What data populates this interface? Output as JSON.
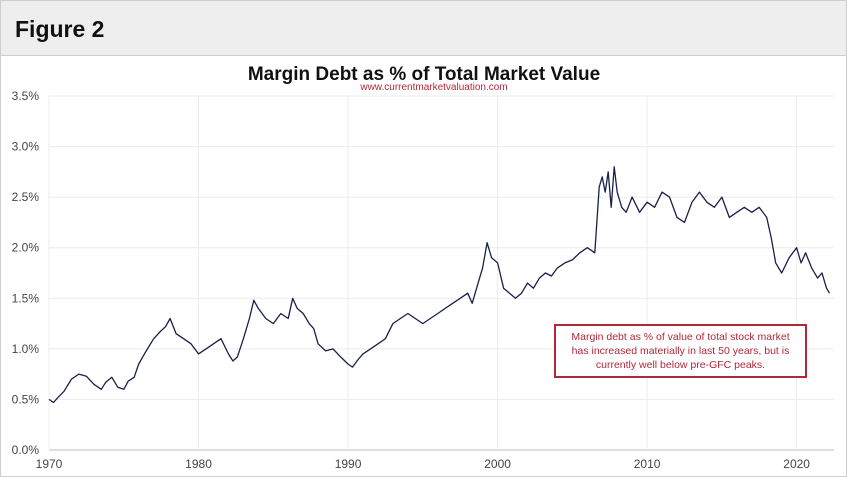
{
  "figure_label": "Figure 2",
  "chart_data": {
    "type": "line",
    "title": "Margin Debt as % of Total Market Value",
    "subtitle": "www.currentmarketvaluation.com",
    "xlabel": "",
    "ylabel": "",
    "xlim": [
      1970,
      2022.5
    ],
    "ylim": [
      0,
      3.5
    ],
    "x_ticks": [
      1970,
      1980,
      1990,
      2000,
      2010,
      2020
    ],
    "x_tick_labels": [
      "1970",
      "1980",
      "1990",
      "2000",
      "2010",
      "2020"
    ],
    "y_ticks": [
      0,
      0.5,
      1.0,
      1.5,
      2.0,
      2.5,
      3.0,
      3.5
    ],
    "y_tick_labels": [
      "0.0%",
      "0.5%",
      "1.0%",
      "1.5%",
      "2.0%",
      "2.5%",
      "3.0%",
      "3.5%"
    ],
    "grid": true,
    "line_color": "#1b1f4a",
    "annotation_color": "#b0283a",
    "annotation": "Margin debt as % of value of total stock market has increased materially in last 50 years, but is currently well below pre-GFC peaks.",
    "series": [
      {
        "x": [
          1970.0,
          1970.3,
          1970.6,
          1971.0,
          1971.5,
          1972.0,
          1972.5,
          1973.0,
          1973.5,
          1973.8,
          1974.2,
          1974.6,
          1975.0,
          1975.3,
          1975.7,
          1976.0,
          1976.5,
          1977.0,
          1977.5,
          1977.8,
          1978.1,
          1978.5,
          1979.0,
          1979.5,
          1980.0,
          1980.5,
          1981.0,
          1981.5,
          1982.0,
          1982.3,
          1982.6,
          1983.0,
          1983.4,
          1983.7,
          1984.0,
          1984.5,
          1985.0,
          1985.5,
          1986.0,
          1986.3,
          1986.6,
          1987.0,
          1987.4,
          1987.7,
          1988.0,
          1988.5,
          1989.0,
          1989.5,
          1990.0,
          1990.3,
          1990.7,
          1991.0,
          1991.5,
          1992.0,
          1992.5,
          1993.0,
          1993.5,
          1994.0,
          1994.5,
          1995.0,
          1995.5,
          1996.0,
          1996.5,
          1997.0,
          1997.5,
          1998.0,
          1998.3,
          1998.6,
          1999.0,
          1999.3,
          1999.6,
          2000.0,
          2000.4,
          2000.8,
          2001.2,
          2001.6,
          2002.0,
          2002.4,
          2002.8,
          2003.2,
          2003.6,
          2004.0,
          2004.5,
          2005.0,
          2005.5,
          2006.0,
          2006.5,
          2006.8,
          2007.0,
          2007.2,
          2007.4,
          2007.6,
          2007.8,
          2008.0,
          2008.3,
          2008.6,
          2009.0,
          2009.5,
          2010.0,
          2010.5,
          2011.0,
          2011.5,
          2012.0,
          2012.5,
          2013.0,
          2013.5,
          2014.0,
          2014.5,
          2015.0,
          2015.5,
          2016.0,
          2016.5,
          2017.0,
          2017.5,
          2018.0,
          2018.3,
          2018.6,
          2019.0,
          2019.5,
          2020.0,
          2020.3,
          2020.6,
          2021.0,
          2021.4,
          2021.7,
          2022.0,
          2022.2
        ],
        "values": [
          0.5,
          0.47,
          0.52,
          0.58,
          0.7,
          0.75,
          0.73,
          0.65,
          0.6,
          0.67,
          0.72,
          0.62,
          0.6,
          0.68,
          0.72,
          0.85,
          0.98,
          1.1,
          1.18,
          1.22,
          1.3,
          1.15,
          1.1,
          1.05,
          0.95,
          1.0,
          1.05,
          1.1,
          0.95,
          0.88,
          0.92,
          1.1,
          1.3,
          1.48,
          1.4,
          1.3,
          1.25,
          1.35,
          1.3,
          1.5,
          1.4,
          1.35,
          1.25,
          1.2,
          1.05,
          0.98,
          1.0,
          0.92,
          0.85,
          0.82,
          0.9,
          0.95,
          1.0,
          1.05,
          1.1,
          1.25,
          1.3,
          1.35,
          1.3,
          1.25,
          1.3,
          1.35,
          1.4,
          1.45,
          1.5,
          1.55,
          1.45,
          1.6,
          1.8,
          2.05,
          1.9,
          1.85,
          1.6,
          1.55,
          1.5,
          1.55,
          1.65,
          1.6,
          1.7,
          1.75,
          1.72,
          1.8,
          1.85,
          1.88,
          1.95,
          2.0,
          1.95,
          2.6,
          2.7,
          2.55,
          2.75,
          2.4,
          2.8,
          2.55,
          2.4,
          2.35,
          2.5,
          2.35,
          2.45,
          2.4,
          2.55,
          2.5,
          2.3,
          2.25,
          2.45,
          2.55,
          2.45,
          2.4,
          2.5,
          2.3,
          2.35,
          2.4,
          2.35,
          2.4,
          2.3,
          2.1,
          1.85,
          1.75,
          1.9,
          2.0,
          1.85,
          1.95,
          1.8,
          1.7,
          1.75,
          1.6,
          1.55
        ]
      }
    ]
  }
}
